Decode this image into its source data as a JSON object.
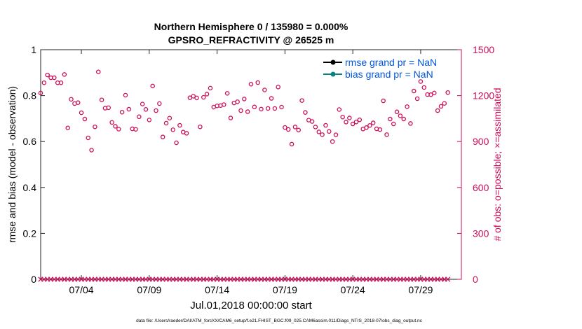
{
  "chart_data": {
    "type": "scatter",
    "title_line1": "Northern Hemisphere 0 / 135980 = 0.000%",
    "title_line2": "GPSRO_REFRACTIVITY @ 26525 m",
    "xlabel": "Jul.01,2018 00:00:00 start",
    "ylabel_left": "rmse and bias (model - observation)",
    "ylabel_right": "# of obs: o=possible; ×=assimilated",
    "footer": "data file: /Users/raeder/DAI/ATM_forcXX/CAM6_setup/f.e21.FHIST_BGC.f09_025.CAM6assim.011/Diags_NTrS_2018-07/obs_diag_output.nc",
    "x_ticks": [
      {
        "day": 4,
        "label": "07/04"
      },
      {
        "day": 9,
        "label": "07/09"
      },
      {
        "day": 14,
        "label": "07/14"
      },
      {
        "day": 19,
        "label": "07/19"
      },
      {
        "day": 24,
        "label": "07/24"
      },
      {
        "day": 29,
        "label": "07/29"
      }
    ],
    "xlim": [
      1,
      32
    ],
    "ylim_left": [
      0,
      1
    ],
    "y_ticks_left": [
      "0",
      "0.2",
      "0.4",
      "0.6",
      "0.8",
      "1"
    ],
    "ylim_right": [
      0,
      1500
    ],
    "y_ticks_right": [
      "0",
      "300",
      "600",
      "900",
      "1200",
      "1500"
    ],
    "legend": [
      {
        "label": "rmse grand pr = NaN",
        "color": "#000000"
      },
      {
        "label": "bias grand pr = NaN",
        "color": "#0a8080"
      }
    ],
    "colors": {
      "obs": "#cc0e5a",
      "label": "#0055dd"
    },
    "obs_day_start": 1.0,
    "obs_day_step": 0.25,
    "obs_possible": [
      1217,
      1284,
      1335,
      1317,
      1317,
      1284,
      1284,
      1338,
      989,
      1176,
      1148,
      1154,
      1088,
      1047,
      924,
      844,
      996,
      1355,
      1172,
      1118,
      1121,
      1025,
      1000,
      981,
      1092,
      1203,
      1111,
      983,
      980,
      1062,
      1145,
      1110,
      1041,
      1263,
      1102,
      1148,
      930,
      1020,
      1053,
      977,
      892,
      1006,
      962,
      954,
      1186,
      1196,
      1185,
      996,
      1189,
      1210,
      1249,
      1125,
      1133,
      1135,
      1141,
      1215,
      1054,
      1152,
      1160,
      1102,
      1178,
      1095,
      1275,
      1126,
      1285,
      1112,
      1237,
      1116,
      1182,
      1116,
      1256,
      1125,
      992,
      979,
      883,
      995,
      975,
      1168,
      1090,
      1040,
      1031,
      995,
      963,
      945,
      1006,
      966,
      900,
      944,
      1109,
      1060,
      1027,
      1054,
      1015,
      1028,
      1042,
      982,
      991,
      1005,
      1022,
      983,
      978,
      1166,
      945,
      1047,
      1015,
      1094,
      1068,
      1047,
      1128,
      1018,
      1230,
      1180,
      1292,
      1253,
      1207,
      1206,
      1217,
      1102,
      1130,
      1149,
      1220
    ]
  }
}
